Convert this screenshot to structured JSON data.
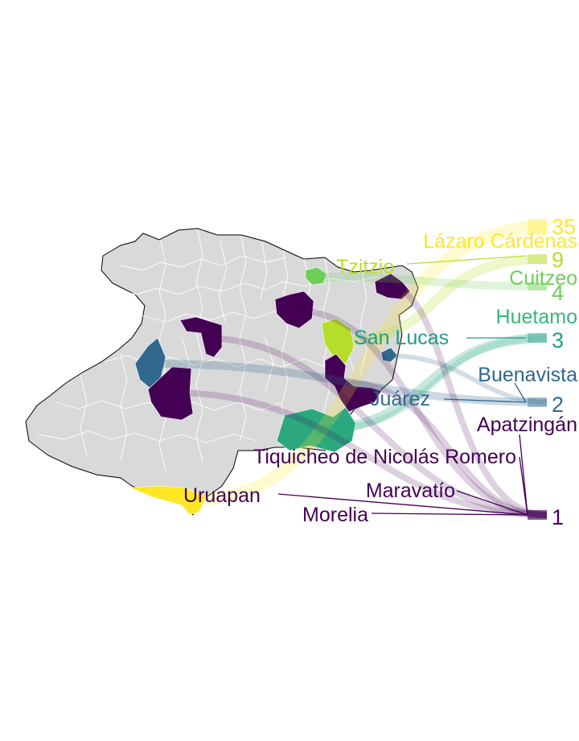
{
  "map": {
    "base_fill": "#d9d9d9",
    "border_color": "#ffffff",
    "outline_color": "#000000"
  },
  "legend_counts": [
    {
      "value": "35",
      "color": "#fde725"
    },
    {
      "value": "9",
      "color": "#b5de2b"
    },
    {
      "value": "4",
      "color": "#6ece58"
    },
    {
      "value": "3",
      "color": "#1f9e89"
    },
    {
      "value": "2",
      "color": "#31688e"
    },
    {
      "value": "1",
      "color": "#440154"
    }
  ],
  "municipios": [
    {
      "name": "Lázaro Cárdenas",
      "count": 35,
      "color": "#fde725"
    },
    {
      "name": "Tzitzio",
      "count": 9,
      "color": "#b5de2b"
    },
    {
      "name": "Cuitzeo",
      "count": 4,
      "color": "#6ece58"
    },
    {
      "name": "Huetamo",
      "count": 3,
      "color": "#35b779"
    },
    {
      "name": "San Lucas",
      "count": 3,
      "color": "#1f9e89"
    },
    {
      "name": "Buenavista",
      "count": 2,
      "color": "#31688e"
    },
    {
      "name": "Juárez",
      "count": 2,
      "color": "#31688e"
    },
    {
      "name": "Apatzingán",
      "count": 1,
      "color": "#440154"
    },
    {
      "name": "Tiquicheo de Nicolás Romero",
      "count": 1,
      "color": "#440154"
    },
    {
      "name": "Maravatío",
      "count": 1,
      "color": "#440154"
    },
    {
      "name": "Uruapan",
      "count": 1,
      "color": "#440154"
    },
    {
      "name": "Morelia",
      "count": 1,
      "color": "#440154"
    }
  ]
}
